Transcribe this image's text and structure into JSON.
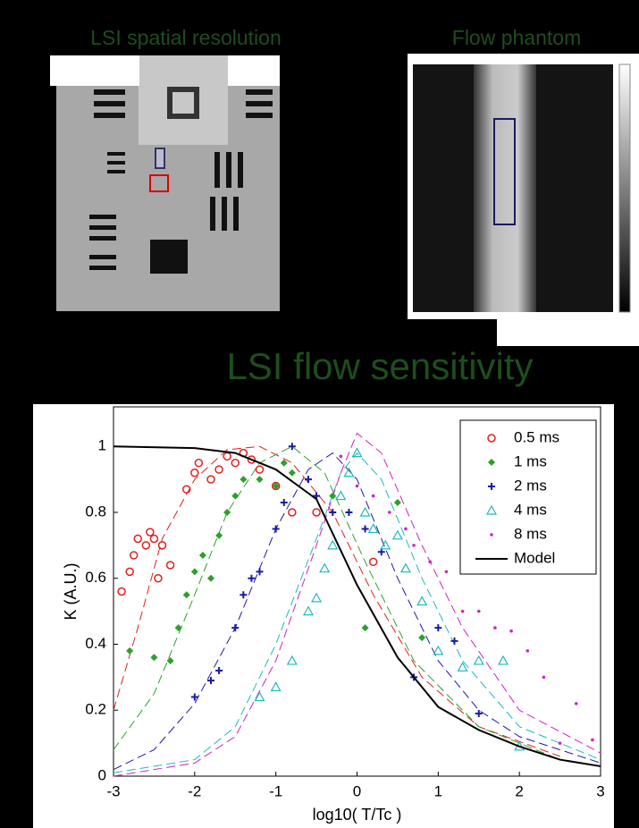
{
  "panels": [
    {
      "title": "LSI spatial resolution"
    },
    {
      "title": "Flow phantom"
    }
  ],
  "chart_data": {
    "type": "scatter",
    "title": "LSI flow sensitivity",
    "x_label": "log10( T/Tc )",
    "y_label": "K (A.U.)",
    "xlim": [
      -3,
      3
    ],
    "ylim": [
      0,
      1.12
    ],
    "xticks": [
      -3,
      -2,
      -1,
      0,
      1,
      2,
      3
    ],
    "yticks": [
      0,
      0.2,
      0.4,
      0.6,
      0.8,
      1
    ],
    "legend": "upper right",
    "series": [
      {
        "name": "0.5 ms",
        "color": "#e0201c",
        "marker": "circle",
        "x": [
          -2.9,
          -2.8,
          -2.75,
          -2.7,
          -2.6,
          -2.55,
          -2.5,
          -2.4,
          -2.3,
          -2.45,
          -2.1,
          -2.0,
          -1.95,
          -1.8,
          -1.7,
          -1.6,
          -1.5,
          -1.4,
          -1.3,
          -1.2,
          -1.0,
          -0.8,
          -0.5,
          0.2
        ],
        "values": [
          0.56,
          0.62,
          0.67,
          0.72,
          0.7,
          0.74,
          0.72,
          0.7,
          0.64,
          0.6,
          0.87,
          0.92,
          0.95,
          0.9,
          0.93,
          0.97,
          0.95,
          0.98,
          0.96,
          0.93,
          0.88,
          0.8,
          0.8,
          0.65
        ]
      },
      {
        "name": "1 ms",
        "color": "#2ca02c",
        "marker": "star",
        "x": [
          -2.8,
          -2.5,
          -2.3,
          -2.2,
          -2.1,
          -2.0,
          -1.9,
          -1.8,
          -1.7,
          -1.6,
          -1.5,
          -1.4,
          -1.2,
          -1.0,
          -0.9,
          -0.8,
          -0.3,
          0.1,
          0.5,
          0.8
        ],
        "values": [
          0.38,
          0.36,
          0.35,
          0.45,
          0.55,
          0.62,
          0.67,
          0.6,
          0.73,
          0.8,
          0.85,
          0.9,
          0.9,
          0.88,
          0.95,
          0.92,
          0.85,
          0.45,
          0.83,
          0.42
        ]
      },
      {
        "name": "2 ms",
        "color": "#1a1aa8",
        "marker": "plus",
        "x": [
          -2.0,
          -1.8,
          -1.7,
          -1.5,
          -1.4,
          -1.3,
          -1.2,
          -1.0,
          -0.9,
          -0.8,
          -0.6,
          -0.5,
          -0.3,
          -0.1,
          0.1,
          0.3,
          0.7,
          1.0,
          1.2,
          1.5
        ],
        "values": [
          0.24,
          0.29,
          0.32,
          0.45,
          0.55,
          0.6,
          0.62,
          0.75,
          0.83,
          1.0,
          0.9,
          0.85,
          0.8,
          0.8,
          0.75,
          0.68,
          0.3,
          0.45,
          0.41,
          0.19
        ]
      },
      {
        "name": "4 ms",
        "color": "#1fb8c0",
        "marker": "triangle",
        "x": [
          -1.2,
          -1.0,
          -0.8,
          -0.6,
          -0.5,
          -0.4,
          -0.3,
          -0.2,
          -0.1,
          0.0,
          0.1,
          0.2,
          0.35,
          0.5,
          0.6,
          0.8,
          1.0,
          1.3,
          1.5,
          1.8,
          2.0
        ],
        "values": [
          0.24,
          0.27,
          0.35,
          0.5,
          0.54,
          0.63,
          0.7,
          0.85,
          0.92,
          0.98,
          0.8,
          0.75,
          0.7,
          0.73,
          0.63,
          0.53,
          0.38,
          0.33,
          0.35,
          0.35,
          0.09
        ]
      },
      {
        "name": "8 ms",
        "color": "#d020c8",
        "marker": "dot",
        "x": [
          -0.2,
          0.0,
          0.2,
          0.4,
          0.6,
          0.7,
          0.9,
          1.1,
          1.3,
          1.5,
          1.7,
          1.9,
          2.1,
          2.3,
          2.5,
          2.7,
          2.9
        ],
        "values": [
          0.97,
          0.88,
          0.85,
          0.8,
          0.75,
          0.7,
          0.65,
          0.62,
          0.5,
          0.5,
          0.45,
          0.44,
          0.38,
          0.3,
          0.1,
          0.22,
          0.11
        ]
      },
      {
        "name": "Model",
        "color": "#000000",
        "marker": "line",
        "x": [
          -3,
          -2,
          -1.5,
          -1,
          -0.5,
          0,
          0.5,
          1,
          1.5,
          2,
          2.5,
          3
        ],
        "values": [
          1.0,
          0.995,
          0.98,
          0.93,
          0.84,
          0.58,
          0.36,
          0.21,
          0.14,
          0.09,
          0.05,
          0.03
        ]
      }
    ],
    "fit_lines": [
      {
        "color": "#e0201c",
        "x": [
          -3,
          -2.7,
          -2.4,
          -2,
          -1.6,
          -1.2,
          -0.8,
          -0.3,
          0.2,
          0.8,
          1.5,
          2.5
        ],
        "values": [
          0.2,
          0.45,
          0.72,
          0.9,
          0.99,
          1.0,
          0.95,
          0.8,
          0.55,
          0.3,
          0.15,
          0.06
        ]
      },
      {
        "color": "#2ca02c",
        "x": [
          -3,
          -2.5,
          -2,
          -1.6,
          -1.2,
          -0.8,
          -0.4,
          0.1,
          0.7,
          1.5,
          2.5
        ],
        "values": [
          0.08,
          0.25,
          0.55,
          0.8,
          0.95,
          1.0,
          0.92,
          0.65,
          0.35,
          0.15,
          0.05
        ]
      },
      {
        "color": "#1a1aa8",
        "x": [
          -3,
          -2.5,
          -2,
          -1.5,
          -1,
          -0.6,
          -0.3,
          0,
          0.5,
          1,
          1.5,
          2,
          3
        ],
        "values": [
          0.02,
          0.08,
          0.22,
          0.45,
          0.75,
          0.93,
          0.98,
          0.9,
          0.6,
          0.35,
          0.2,
          0.12,
          0.04
        ]
      },
      {
        "color": "#1fb8c0",
        "x": [
          -3,
          -2,
          -1.5,
          -1,
          -0.5,
          -0.2,
          0,
          0.3,
          0.8,
          1.3,
          2,
          3
        ],
        "values": [
          0.01,
          0.05,
          0.15,
          0.4,
          0.72,
          0.92,
          0.98,
          0.9,
          0.6,
          0.35,
          0.15,
          0.05
        ]
      },
      {
        "color": "#d020c8",
        "x": [
          -3,
          -2,
          -1.5,
          -1,
          -0.5,
          -0.2,
          0,
          0.3,
          0.8,
          1.3,
          2,
          3
        ],
        "values": [
          0.0,
          0.04,
          0.12,
          0.35,
          0.7,
          0.92,
          1.04,
          0.98,
          0.7,
          0.45,
          0.2,
          0.07
        ]
      }
    ]
  }
}
